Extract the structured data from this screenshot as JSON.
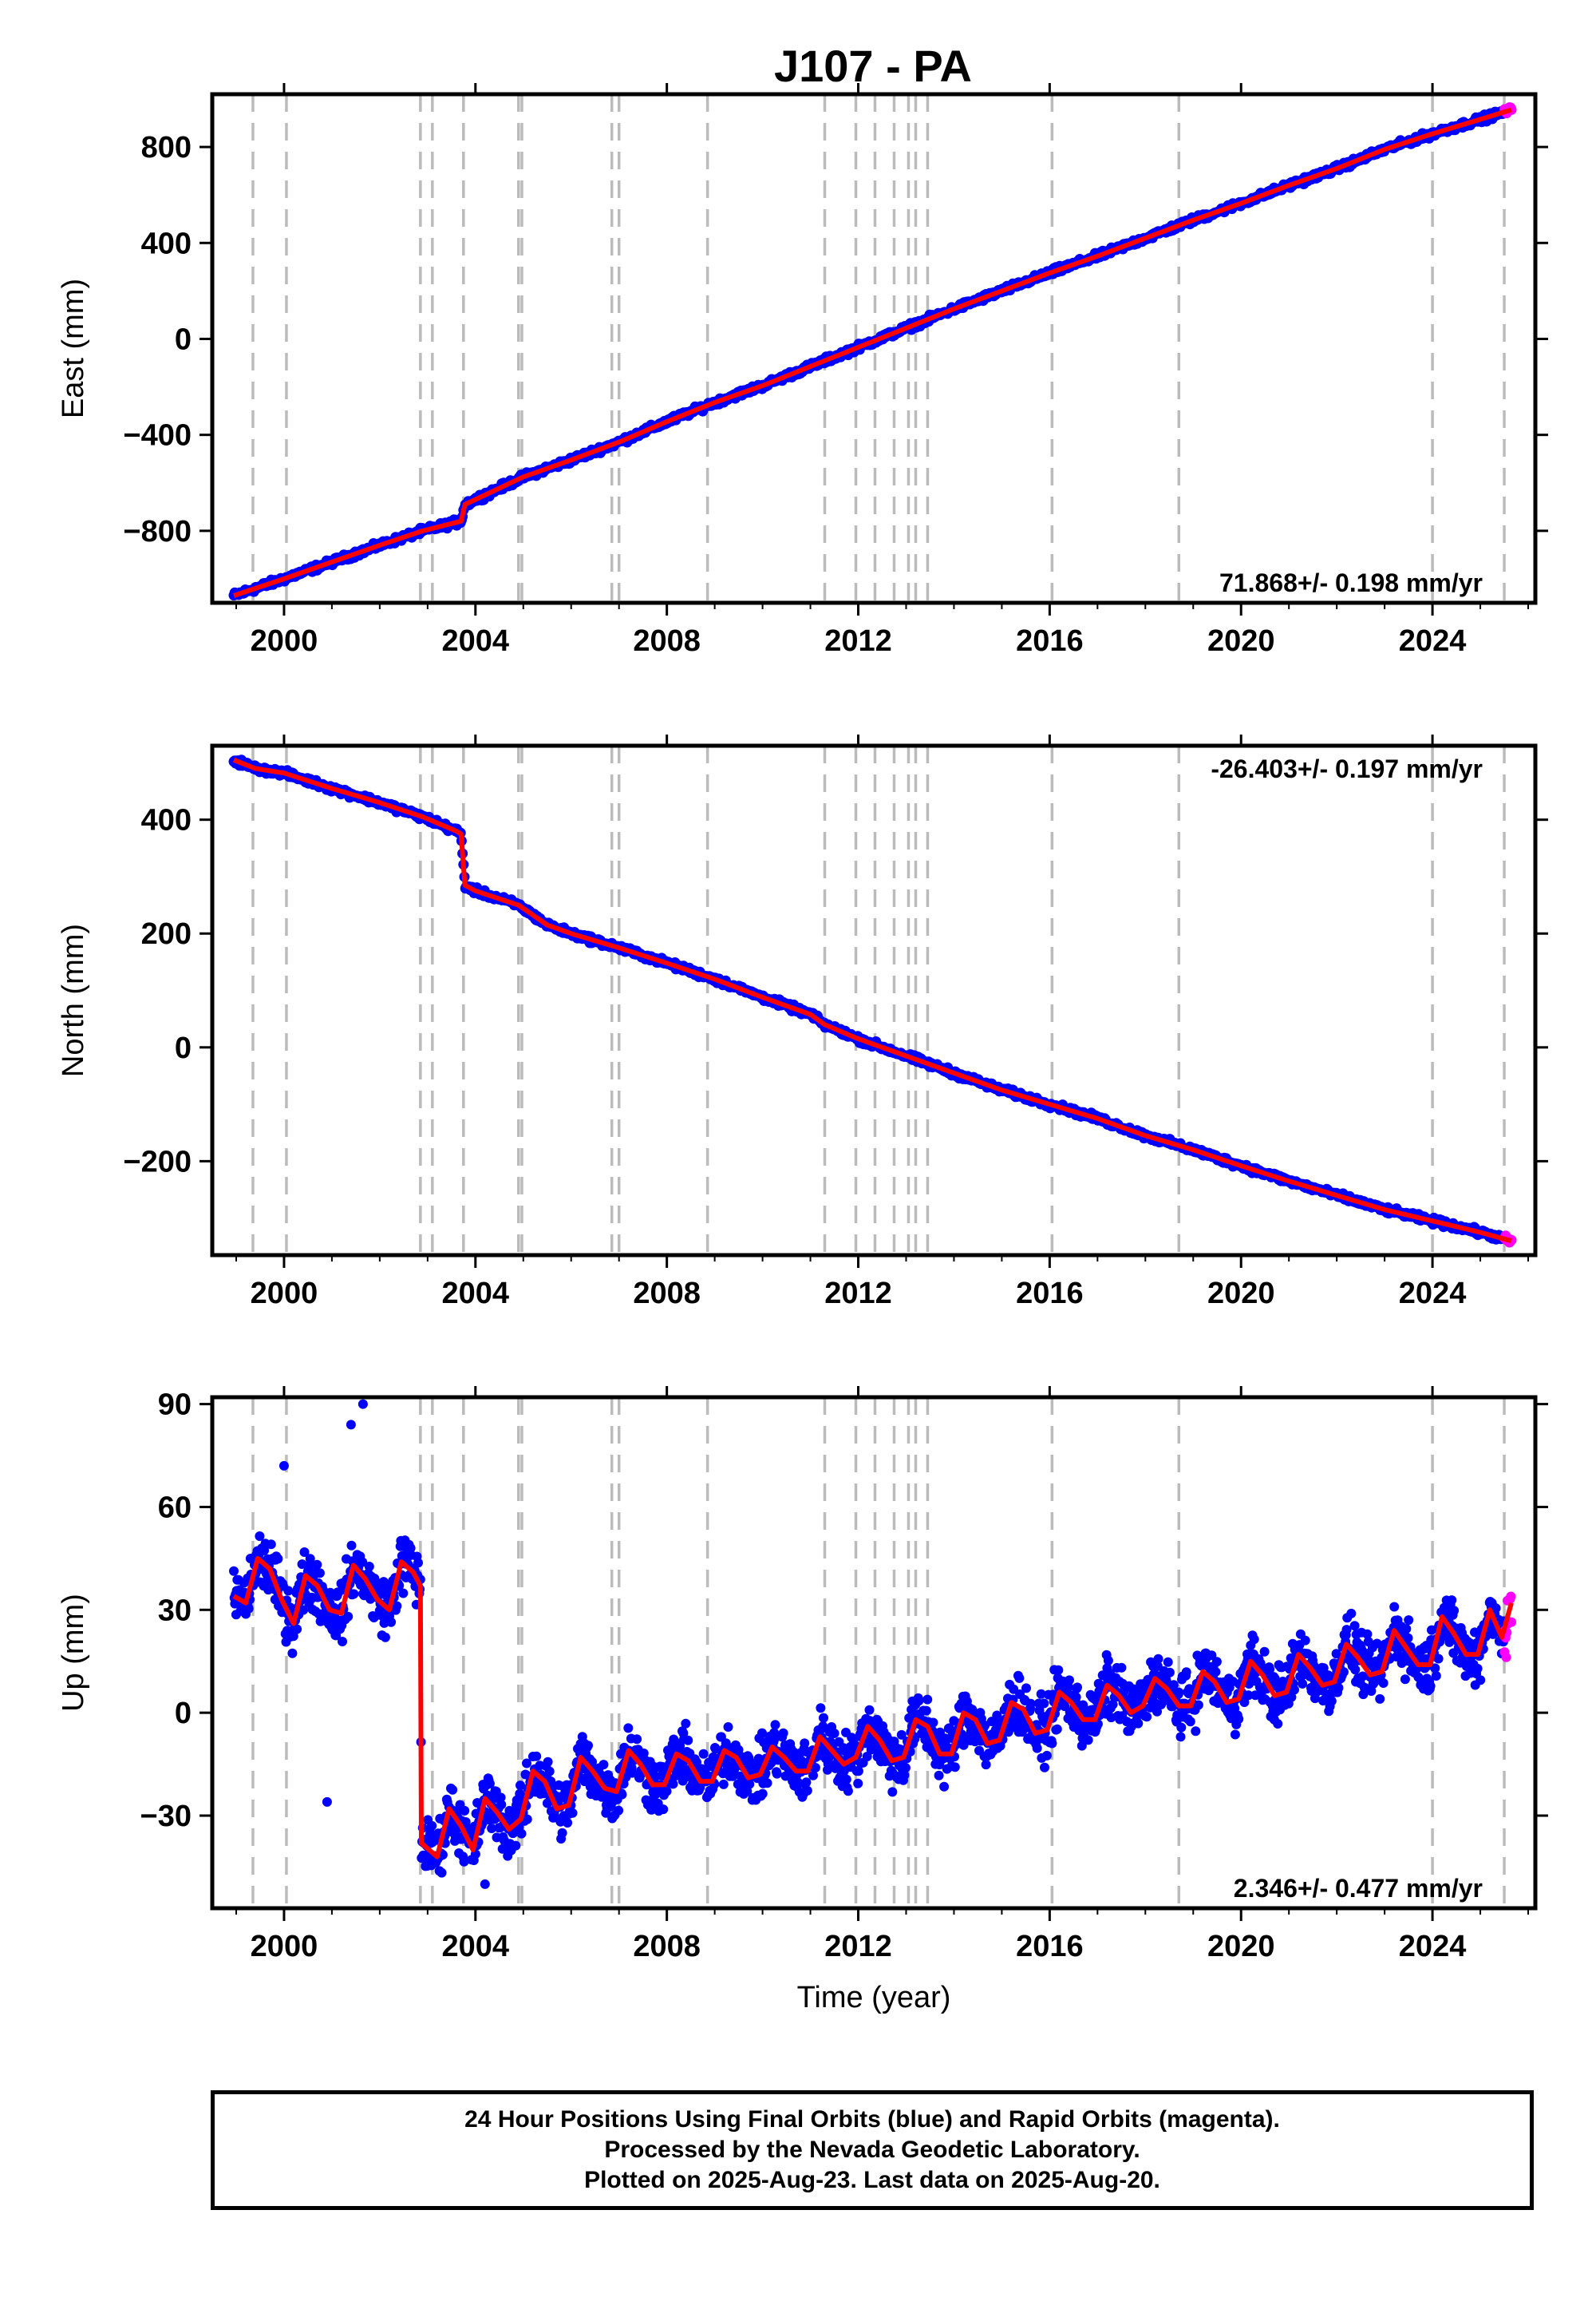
{
  "title": "J107 - PA",
  "colors": {
    "final_orbits": "#0000ff",
    "rapid_orbits": "#ff00ff",
    "model_fit": "#ff0000",
    "event_lines": "#bbbbbb"
  },
  "footer": {
    "line1": "24 Hour Positions Using Final Orbits (blue) and Rapid Orbits (magenta).",
    "line2": "Processed by the Nevada Geodetic Laboratory.",
    "line3": "Plotted on 2025-Aug-23. Last data on 2025-Aug-20."
  },
  "chart_data": [
    {
      "type": "scatter",
      "panel": "east",
      "ylabel": "East (mm)",
      "xlabel": "",
      "rate_label": "71.868+/- 0.198 mm/yr",
      "rate_position": "bottom-right",
      "xlim": [
        1998.5,
        2026.15
      ],
      "ylim": [
        -1100,
        1020
      ],
      "x_ticks": [
        2000,
        2004,
        2008,
        2012,
        2016,
        2020,
        2024
      ],
      "y_ticks": [
        -800,
        -400,
        0,
        400,
        800
      ],
      "grid": false,
      "event_lines": [
        1999.35,
        2000.05,
        2002.85,
        2003.1,
        2003.75,
        2004.9,
        2004.97,
        2006.85,
        2007.0,
        2008.85,
        2011.3,
        2011.95,
        2012.35,
        2012.75,
        2013.05,
        2013.2,
        2013.45,
        2016.05,
        2018.7,
        2024.0,
        2025.5
      ],
      "series": [
        {
          "x": [
            1998.95,
            2000.0,
            2001.0,
            2002.0,
            2002.9,
            2003.7,
            2003.78,
            2005.0,
            2006.0,
            2007.0,
            2008.0,
            2009.0,
            2010.0,
            2011.0,
            2012.0,
            2013.0,
            2014.0,
            2015.0,
            2016.0,
            2017.0,
            2018.0,
            2019.0,
            2020.0,
            2021.0,
            2022.0,
            2023.0,
            2024.0,
            2025.0,
            2025.65
          ],
          "values": [
            -1070,
            -1000,
            -930,
            -860,
            -800,
            -760,
            -690,
            -575,
            -505,
            -430,
            -345,
            -265,
            -195,
            -115,
            -35,
            45,
            125,
            200,
            275,
            345,
            420,
            495,
            565,
            640,
            710,
            790,
            855,
            915,
            955
          ]
        }
      ]
    },
    {
      "type": "scatter",
      "panel": "north",
      "ylabel": "North (mm)",
      "xlabel": "",
      "rate_label": "-26.403+/- 0.197 mm/yr",
      "rate_position": "top-right",
      "xlim": [
        1998.5,
        2026.15
      ],
      "ylim": [
        -365,
        530
      ],
      "x_ticks": [
        2000,
        2004,
        2008,
        2012,
        2016,
        2020,
        2024
      ],
      "y_ticks": [
        -200,
        0,
        200,
        400
      ],
      "grid": false,
      "event_lines": [
        1999.35,
        2000.05,
        2002.85,
        2003.1,
        2003.75,
        2004.9,
        2004.97,
        2006.85,
        2007.0,
        2008.85,
        2011.3,
        2011.95,
        2012.35,
        2012.75,
        2013.05,
        2013.2,
        2013.45,
        2016.05,
        2018.7,
        2024.0,
        2025.5
      ],
      "series": [
        {
          "x": [
            1998.95,
            1999.4,
            2000.0,
            2001.0,
            2002.0,
            2002.9,
            2003.6,
            2003.7,
            2003.78,
            2004.0,
            2004.9,
            2005.5,
            2006.0,
            2007.0,
            2008.0,
            2009.0,
            2010.0,
            2011.0,
            2011.3,
            2012.0,
            2013.0,
            2014.0,
            2015.0,
            2016.0,
            2017.0,
            2018.0,
            2019.0,
            2020.0,
            2021.0,
            2022.0,
            2023.0,
            2024.0,
            2025.0,
            2025.65
          ],
          "values": [
            505,
            490,
            482,
            455,
            430,
            405,
            380,
            375,
            285,
            275,
            250,
            215,
            200,
            175,
            148,
            120,
            88,
            58,
            40,
            15,
            -15,
            -45,
            -75,
            -100,
            -125,
            -155,
            -180,
            -208,
            -235,
            -260,
            -285,
            -305,
            -325,
            -340
          ]
        }
      ]
    },
    {
      "type": "scatter",
      "panel": "up",
      "ylabel": "Up (mm)",
      "xlabel": "Time (year)",
      "rate_label": "2.346+/- 0.477 mm/yr",
      "rate_position": "bottom-right",
      "xlim": [
        1998.5,
        2026.15
      ],
      "ylim": [
        -57,
        92
      ],
      "x_ticks": [
        2000,
        2004,
        2008,
        2012,
        2016,
        2020,
        2024
      ],
      "y_ticks": [
        -30,
        0,
        30,
        60,
        90
      ],
      "grid": false,
      "event_lines": [
        1999.35,
        2000.05,
        2002.85,
        2003.1,
        2003.75,
        2004.9,
        2004.97,
        2006.85,
        2007.0,
        2008.85,
        2011.3,
        2011.95,
        2012.35,
        2012.75,
        2013.05,
        2013.2,
        2013.45,
        2016.05,
        2018.7,
        2024.0,
        2025.5
      ],
      "series": [
        {
          "x": [
            1998.95,
            1999.2,
            1999.45,
            1999.7,
            1999.95,
            2000.2,
            2000.45,
            2000.7,
            2000.95,
            2001.2,
            2001.45,
            2001.7,
            2001.95,
            2002.2,
            2002.45,
            2002.7,
            2002.85,
            2002.87,
            2003.2,
            2003.45,
            2003.7,
            2003.95,
            2004.2,
            2004.45,
            2004.7,
            2004.95,
            2005.2,
            2005.45,
            2005.7,
            2005.95,
            2006.2,
            2006.45,
            2006.7,
            2006.95,
            2007.2,
            2007.45,
            2007.7,
            2007.95,
            2008.2,
            2008.45,
            2008.7,
            2008.95,
            2009.2,
            2009.45,
            2009.7,
            2009.95,
            2010.2,
            2010.45,
            2010.7,
            2010.95,
            2011.2,
            2011.45,
            2011.7,
            2011.95,
            2012.2,
            2012.45,
            2012.7,
            2012.95,
            2013.2,
            2013.45,
            2013.7,
            2013.95,
            2014.2,
            2014.45,
            2014.7,
            2014.95,
            2015.2,
            2015.45,
            2015.7,
            2015.95,
            2016.2,
            2016.45,
            2016.7,
            2016.95,
            2017.2,
            2017.45,
            2017.7,
            2017.95,
            2018.2,
            2018.45,
            2018.7,
            2018.95,
            2019.2,
            2019.45,
            2019.7,
            2019.95,
            2020.2,
            2020.45,
            2020.7,
            2020.95,
            2021.2,
            2021.45,
            2021.7,
            2021.95,
            2022.2,
            2022.45,
            2022.7,
            2022.95,
            2023.2,
            2023.45,
            2023.7,
            2023.95,
            2024.2,
            2024.45,
            2024.7,
            2024.95,
            2025.2,
            2025.45,
            2025.65
          ],
          "values": [
            34,
            32,
            45,
            42,
            33,
            26,
            40,
            37,
            30,
            29,
            43,
            39,
            33,
            30,
            44,
            41,
            37,
            -38,
            -42,
            -28,
            -33,
            -40,
            -25,
            -29,
            -34,
            -31,
            -17,
            -20,
            -28,
            -27,
            -13,
            -17,
            -22,
            -23,
            -11,
            -15,
            -21,
            -21,
            -12,
            -14,
            -20,
            -20,
            -11,
            -13,
            -19,
            -18,
            -10,
            -13,
            -17,
            -17,
            -7,
            -11,
            -15,
            -13,
            -4,
            -8,
            -14,
            -13,
            -2,
            -4,
            -12,
            -12,
            0,
            -2,
            -9,
            -8,
            3,
            1,
            -6,
            -5,
            6,
            3,
            -2,
            -2,
            8,
            5,
            0,
            2,
            10,
            7,
            2,
            2,
            12,
            9,
            3,
            4,
            15,
            11,
            5,
            6,
            17,
            13,
            8,
            9,
            20,
            16,
            11,
            12,
            24,
            19,
            14,
            14,
            28,
            23,
            17,
            17,
            30,
            22,
            32
          ]
        }
      ]
    }
  ]
}
